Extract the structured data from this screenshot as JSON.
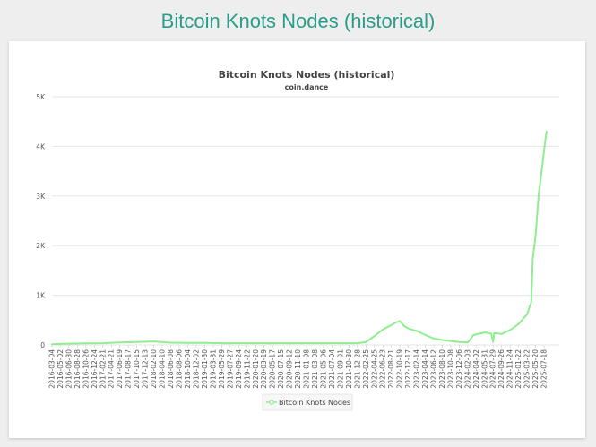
{
  "page": {
    "heading": "Bitcoin Knots Nodes (historical)"
  },
  "colors": {
    "heading": "#2a9d8a",
    "series": "#90ee90",
    "grid": "#e6e6e6",
    "axis_text": "#555555"
  },
  "chart_data": {
    "type": "line",
    "title": "Bitcoin Knots Nodes (historical)",
    "subtitle": "coin.dance",
    "ylim": [
      0,
      5000
    ],
    "y_ticks": [
      0,
      1000,
      2000,
      3000,
      4000,
      5000
    ],
    "y_tick_labels": [
      "0",
      "1K",
      "2K",
      "3K",
      "4K",
      "5K"
    ],
    "grid": true,
    "legend_position": "bottom-center",
    "x_tick_labels": [
      "2016-03-04",
      "2016-05-02",
      "2016-06-30",
      "2016-08-28",
      "2016-10-26",
      "2016-12-24",
      "2017-02-21",
      "2017-04-21",
      "2017-06-19",
      "2017-08-17",
      "2017-10-15",
      "2017-12-13",
      "2018-02-10",
      "2018-04-10",
      "2018-06-08",
      "2018-08-06",
      "2018-10-04",
      "2018-12-02",
      "2019-01-30",
      "2019-03-31",
      "2019-05-29",
      "2019-07-27",
      "2019-09-24",
      "2019-11-22",
      "2020-01-20",
      "2020-03-19",
      "2020-05-17",
      "2020-07-15",
      "2020-09-12",
      "2020-11-10",
      "2021-01-08",
      "2021-03-08",
      "2021-05-06",
      "2021-07-04",
      "2021-09-01",
      "2021-10-30",
      "2021-12-28",
      "2022-02-25",
      "2022-04-25",
      "2022-06-23",
      "2022-08-21",
      "2022-10-19",
      "2022-12-17",
      "2023-02-14",
      "2023-04-14",
      "2023-06-12",
      "2023-08-10",
      "2023-10-08",
      "2023-12-06",
      "2024-02-03",
      "2024-04-02",
      "2024-05-31",
      "2024-07-29",
      "2024-09-26",
      "2024-11-24",
      "2025-01-22",
      "2025-03-22",
      "2025-05-20",
      "2025-07-18"
    ],
    "series": [
      {
        "name": "Bitcoin Knots Nodes",
        "x": [
          "2016-03-04",
          "2016-06-30",
          "2016-10-26",
          "2017-02-21",
          "2017-06-19",
          "2017-10-15",
          "2018-02-10",
          "2018-06-08",
          "2018-10-04",
          "2019-01-30",
          "2019-05-29",
          "2019-09-24",
          "2020-01-20",
          "2020-05-17",
          "2020-09-12",
          "2021-01-08",
          "2021-05-06",
          "2021-09-01",
          "2021-12-28",
          "2022-02-25",
          "2022-04-25",
          "2022-06-23",
          "2022-08-21",
          "2022-09-20",
          "2022-10-19",
          "2022-11-18",
          "2022-12-17",
          "2023-02-14",
          "2023-04-14",
          "2023-06-12",
          "2023-08-10",
          "2023-10-08",
          "2023-12-06",
          "2024-02-03",
          "2024-03-15",
          "2024-05-31",
          "2024-07-15",
          "2024-07-29",
          "2024-08-05",
          "2024-09-26",
          "2024-11-24",
          "2025-01-22",
          "2025-02-20",
          "2025-03-22",
          "2025-04-10",
          "2025-04-20",
          "2025-05-01",
          "2025-05-20",
          "2025-06-10",
          "2025-07-01",
          "2025-07-18",
          "2025-07-28",
          "2025-08-05"
        ],
        "values": [
          15,
          25,
          30,
          35,
          50,
          60,
          70,
          45,
          40,
          40,
          35,
          35,
          35,
          35,
          35,
          35,
          35,
          35,
          35,
          60,
          180,
          310,
          400,
          450,
          480,
          380,
          330,
          280,
          200,
          130,
          100,
          80,
          60,
          50,
          200,
          250,
          230,
          60,
          240,
          220,
          300,
          420,
          520,
          620,
          780,
          850,
          1750,
          2200,
          3000,
          3500,
          3900,
          4150,
          4300
        ]
      }
    ]
  }
}
